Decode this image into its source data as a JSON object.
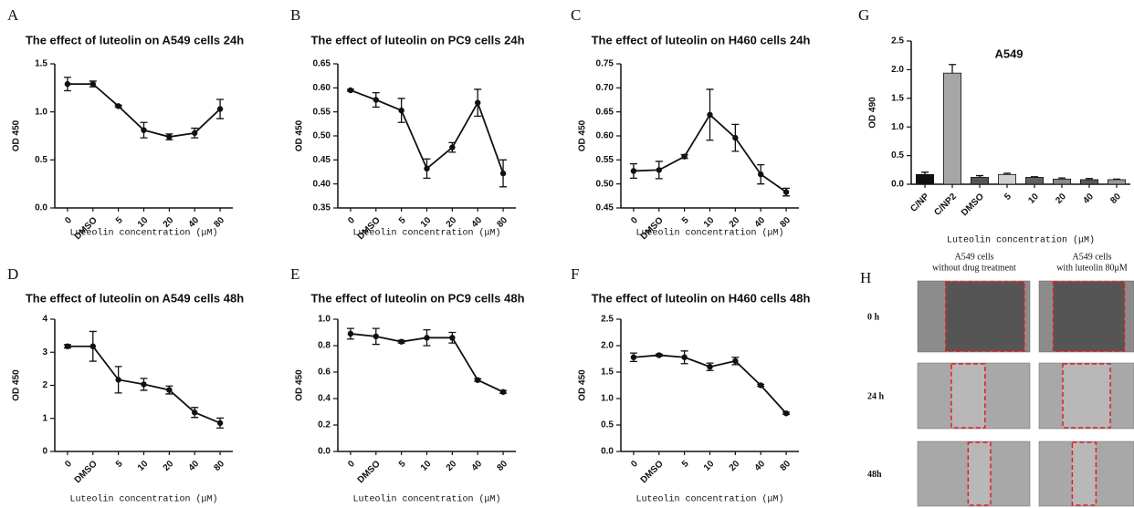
{
  "chart_data": [
    {
      "type": "line",
      "label": "A",
      "title": "The effect of luteolin on A549 cells 24h",
      "ylabel": "OD 450",
      "xlabel": "Luteolin concentration (μM)",
      "categories": [
        "0",
        "DMSO",
        "5",
        "10",
        "20",
        "40",
        "80"
      ],
      "values": [
        1.29,
        1.29,
        1.06,
        0.81,
        0.74,
        0.78,
        1.03
      ],
      "errors": [
        0.07,
        0.03,
        0.01,
        0.08,
        0.03,
        0.05,
        0.1
      ],
      "color": "#111111",
      "ylim": [
        0,
        1.5
      ],
      "yticks": [
        {
          "value": 0,
          "label": "0.0"
        },
        0.5,
        {
          "value": 1,
          "label": "1.0"
        },
        1.5
      ]
    },
    {
      "type": "line",
      "label": "B",
      "title": "The effect of luteolin on PC9 cells 24h",
      "ylabel": "OD 450",
      "xlabel": "Luteolin concentration (μM)",
      "categories": [
        "0",
        "DMSO",
        "5",
        "10",
        "20",
        "40",
        "80"
      ],
      "values": [
        0.595,
        0.575,
        0.553,
        0.432,
        0.476,
        0.569,
        0.422
      ],
      "errors": [
        0.002,
        0.015,
        0.025,
        0.02,
        0.01,
        0.028,
        0.028
      ],
      "color": "#111111",
      "ylim": [
        0.35,
        0.65
      ],
      "yticks": [
        0.35,
        {
          "value": 0.4,
          "label": "0.40"
        },
        0.45,
        {
          "value": 0.5,
          "label": "0.50"
        },
        0.55,
        {
          "value": 0.6,
          "label": "0.60"
        },
        0.65
      ]
    },
    {
      "type": "line",
      "label": "C",
      "title": "The effect of luteolin on H460 cells 24h",
      "ylabel": "OD 450",
      "xlabel": "Luteolin concentration (μM)",
      "categories": [
        "0",
        "DMSO",
        "5",
        "10",
        "20",
        "40",
        "80"
      ],
      "values": [
        0.527,
        0.529,
        0.557,
        0.644,
        0.596,
        0.52,
        0.483
      ],
      "errors": [
        0.015,
        0.018,
        0.004,
        0.053,
        0.028,
        0.02,
        0.008
      ],
      "color": "#111111",
      "ylim": [
        0.45,
        0.75
      ],
      "yticks": [
        0.45,
        {
          "value": 0.5,
          "label": "0.50"
        },
        0.55,
        {
          "value": 0.6,
          "label": "0.60"
        },
        0.65,
        {
          "value": 0.7,
          "label": "0.70"
        },
        0.75
      ]
    },
    {
      "type": "line",
      "label": "D",
      "title": "The effect of luteolin on A549 cells 48h",
      "ylabel": "OD 450",
      "xlabel": "Luteolin concentration (μM)",
      "categories": [
        "0",
        "DMSO",
        "5",
        "10",
        "20",
        "40",
        "80"
      ],
      "values": [
        3.18,
        3.18,
        2.17,
        2.03,
        1.86,
        1.18,
        0.86
      ],
      "errors": [
        0.05,
        0.45,
        0.4,
        0.18,
        0.12,
        0.15,
        0.15
      ],
      "color": "#111111",
      "ylim": [
        0,
        4
      ],
      "yticks": [
        0,
        1,
        2,
        3,
        4
      ]
    },
    {
      "type": "line",
      "label": "E",
      "title": "The effect of luteolin on PC9 cells 48h",
      "ylabel": "OD 450",
      "xlabel": "Luteolin concentration (μM)",
      "categories": [
        "0",
        "DMSO",
        "5",
        "10",
        "20",
        "40",
        "80"
      ],
      "values": [
        0.89,
        0.87,
        0.83,
        0.86,
        0.86,
        0.54,
        0.45
      ],
      "errors": [
        0.04,
        0.06,
        0.01,
        0.06,
        0.04,
        0.01,
        0.01
      ],
      "color": "#111111",
      "ylim": [
        0,
        1
      ],
      "yticks": [
        {
          "value": 0,
          "label": "0.0"
        },
        0.2,
        0.4,
        0.6,
        0.8,
        {
          "value": 1,
          "label": "1.0"
        }
      ]
    },
    {
      "type": "line",
      "label": "F",
      "title": "The effect of luteolin on H460 cells 48h",
      "ylabel": "OD 450",
      "xlabel": "Luteolin concentration (μM)",
      "categories": [
        "0",
        "DMSO",
        "5",
        "10",
        "20",
        "40",
        "80"
      ],
      "values": [
        1.78,
        1.82,
        1.78,
        1.6,
        1.71,
        1.25,
        0.72
      ],
      "errors": [
        0.08,
        0.02,
        0.12,
        0.07,
        0.07,
        0.02,
        0.02
      ],
      "color": "#111111",
      "ylim": [
        0,
        2.5
      ],
      "yticks": [
        {
          "value": 0,
          "label": "0.0"
        },
        0.5,
        {
          "value": 1,
          "label": "1.0"
        },
        1.5,
        {
          "value": 2,
          "label": "2.0"
        },
        2.5
      ]
    },
    {
      "type": "bar",
      "label": "G",
      "title": "A549",
      "ylabel": "OD 490",
      "xlabel": "Luteolin concentration (μM)",
      "categories": [
        "C/NP",
        "C/NP2",
        "DMSO",
        "5",
        "10",
        "20",
        "40",
        "80"
      ],
      "values": [
        0.17,
        1.94,
        0.12,
        0.17,
        0.12,
        0.09,
        0.08,
        0.08
      ],
      "errors": [
        0.04,
        0.15,
        0.03,
        0.02,
        0.01,
        0.02,
        0.02,
        0.01
      ],
      "colors": [
        "#111111",
        "#a6a6a6",
        "#555555",
        "#d0d0d0",
        "#606060",
        "#8a8a8a",
        "#5a5a5a",
        "#9a9a9a"
      ],
      "ylim": [
        0,
        2.5
      ],
      "yticks": [
        {
          "value": 0,
          "label": "0.0"
        },
        0.5,
        {
          "value": 1,
          "label": "1.0"
        },
        1.5,
        {
          "value": 2,
          "label": "2.0"
        },
        2.5
      ]
    }
  ],
  "panel_h": {
    "label": "H",
    "columns": [
      [
        "A549 cells",
        "without drug treatment"
      ],
      [
        "A549 cells",
        "with luteolin 80μM"
      ]
    ],
    "rows": [
      "0 h",
      "24 h",
      "48h"
    ]
  }
}
